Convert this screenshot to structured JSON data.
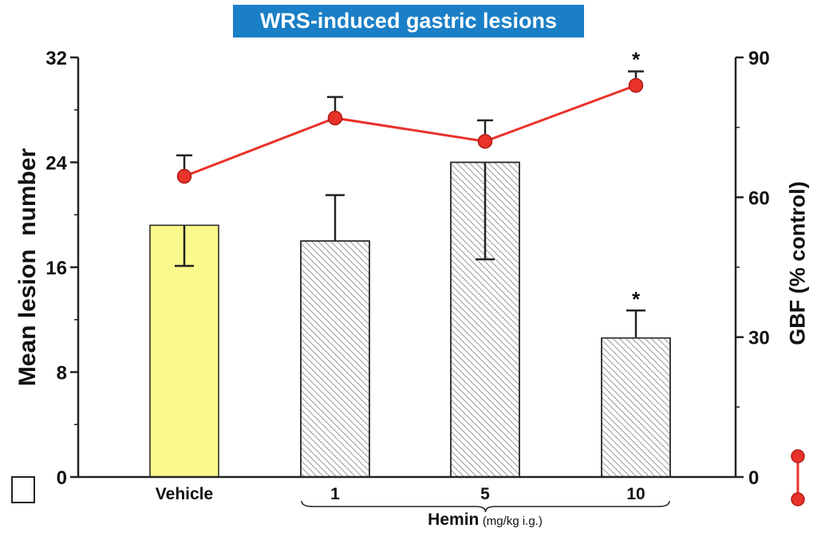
{
  "chart_data": {
    "type": "bar",
    "title": "WRS-induced gastric lesions",
    "categories": [
      "Vehicle",
      "1",
      "5",
      "10"
    ],
    "group_label": "Hemin",
    "group_unit": "(mg/kg i.g.)",
    "bars": {
      "values": [
        19.2,
        18.0,
        24.0,
        10.6
      ],
      "error_plus": [
        0,
        3.5,
        0,
        2.1
      ],
      "error_minus": [
        3.1,
        0,
        7.4,
        0
      ],
      "colors": [
        "#fafa8c",
        "#ffffff",
        "#ffffff",
        "#ffffff"
      ],
      "hatched": [
        false,
        true,
        true,
        true
      ],
      "significant": [
        false,
        false,
        false,
        true
      ]
    },
    "line": {
      "values": [
        64.5,
        77.0,
        72.0,
        84.0
      ],
      "error_plus": [
        4.5,
        4.5,
        4.5,
        3.0
      ],
      "significant": [
        false,
        false,
        false,
        true
      ],
      "color": "#e8322a"
    },
    "ylabel_left": "Mean lesion  number",
    "ylabel_right": "GBF (% control)",
    "ylim_left": [
      0,
      32
    ],
    "yticks_left": [
      0,
      8,
      16,
      24,
      32
    ],
    "ylim_right": [
      0,
      90
    ],
    "yticks_right": [
      0,
      30,
      60,
      90
    ],
    "significance_marker": "*",
    "grid": false,
    "title_bg": "#1a7fc6"
  }
}
